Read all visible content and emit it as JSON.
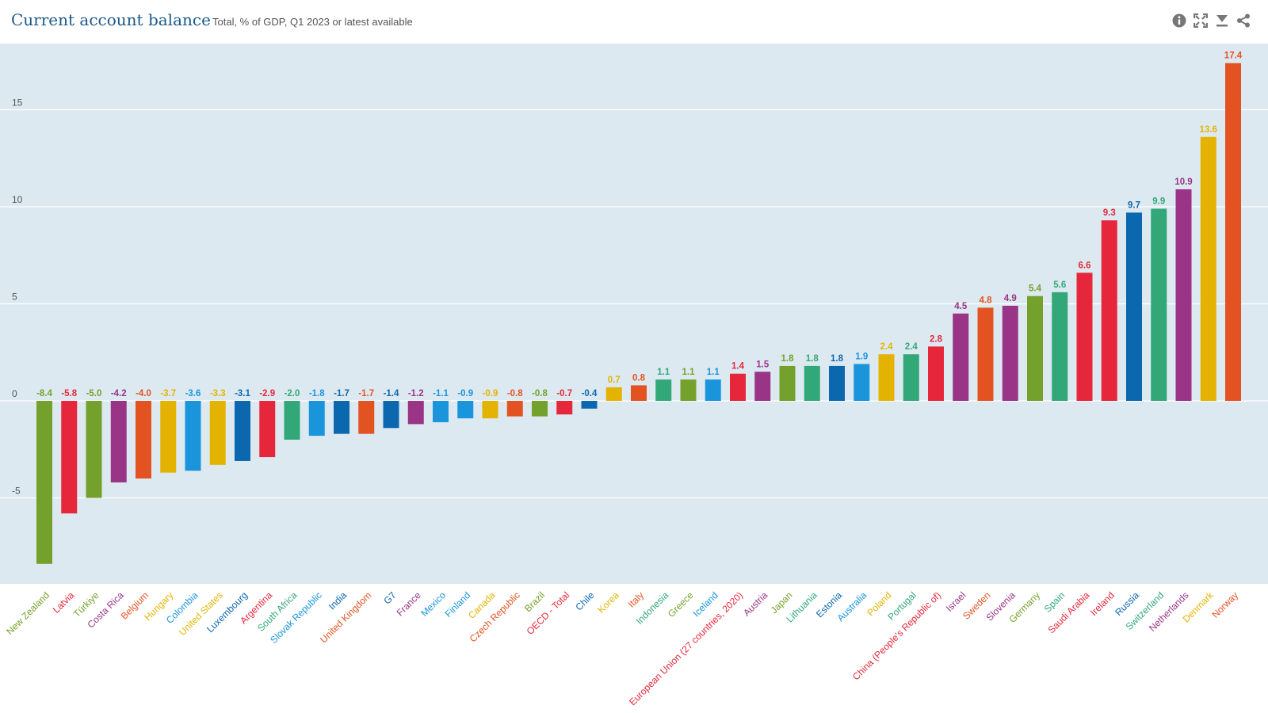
{
  "header": {
    "title": "Current account balance",
    "subtitle": "Total, % of GDP, Q1 2023 or latest available"
  },
  "toolbar": {
    "icons": [
      "info-icon",
      "fullscreen-icon",
      "download-icon",
      "share-icon"
    ],
    "icon_color": "#777777"
  },
  "colors": {
    "plot_background": "#dde9f1",
    "gridline": "#ffffff",
    "axis_text": "#555555",
    "title": "#1a5a8a",
    "series_palette": [
      "#74a12b",
      "#e6273b",
      "#74a12b",
      "#993486",
      "#e35322",
      "#e4b302",
      "#1a95dc",
      "#e4b302",
      "#0b67ae",
      "#e6273b",
      "#32a878",
      "#1a95dc",
      "#0b67ae",
      "#e35322",
      "#0b67ae",
      "#993486",
      "#1a95dc",
      "#1a95dc",
      "#e4b302",
      "#e35322",
      "#74a12b",
      "#e6273b",
      "#0b67ae",
      "#e4b302",
      "#e35322",
      "#32a878",
      "#74a12b",
      "#1a95dc",
      "#e6273b",
      "#993486",
      "#74a12b",
      "#32a878",
      "#0b67ae",
      "#1a95dc",
      "#e4b302",
      "#32a878",
      "#e6273b",
      "#993486",
      "#e35322",
      "#993486",
      "#74a12b",
      "#32a878",
      "#e6273b",
      "#e6273b",
      "#0b67ae",
      "#32a878",
      "#993486",
      "#e4b302",
      "#e35322"
    ]
  },
  "chart_data": {
    "type": "bar",
    "title": "Current account balance",
    "subtitle": "Total, % of GDP, Q1 2023 or latest available",
    "categories": [
      "New Zealand",
      "Latvia",
      "Türkiye",
      "Costa Rica",
      "Belgium",
      "Hungary",
      "Colombia",
      "United States",
      "Luxembourg",
      "Argentina",
      "South Africa",
      "Slovak Republic",
      "India",
      "United Kingdom",
      "G7",
      "France",
      "Mexico",
      "Finland",
      "Canada",
      "Czech Republic",
      "Brazil",
      "OECD - Total",
      "Chile",
      "Korea",
      "Italy",
      "Indonesia",
      "Greece",
      "Iceland",
      "European Union (27 countries, 2020)",
      "Austria",
      "Japan",
      "Lithuania",
      "Estonia",
      "Australia",
      "Poland",
      "Portugal",
      "China (People's Republic of)",
      "Israel",
      "Sweden",
      "Slovenia",
      "Germany",
      "Spain",
      "Saudi Arabia",
      "Ireland",
      "Russia",
      "Switzerland",
      "Netherlands",
      "Denmark",
      "Norway"
    ],
    "values": [
      -8.4,
      -5.8,
      -5.0,
      -4.2,
      -4.0,
      -3.7,
      -3.6,
      -3.3,
      -3.1,
      -2.9,
      -2.0,
      -1.8,
      -1.7,
      -1.7,
      -1.4,
      -1.2,
      -1.1,
      -0.9,
      -0.9,
      -0.8,
      -0.8,
      -0.7,
      -0.4,
      0.7,
      0.8,
      1.1,
      1.1,
      1.1,
      1.4,
      1.5,
      1.8,
      1.8,
      1.8,
      1.9,
      2.4,
      2.4,
      2.8,
      4.5,
      4.8,
      4.9,
      5.4,
      5.6,
      6.6,
      9.3,
      9.7,
      9.9,
      10.9,
      13.6,
      17.4
    ],
    "value_labels": [
      "-8.4",
      "-5.8",
      "-5.0",
      "-4.2",
      "-4.0",
      "-3.7",
      "-3.6",
      "-3.3",
      "-3.1",
      "-2.9",
      "-2.0",
      "-1.8",
      "-1.7",
      "-1.7",
      "-1.4",
      "-1.2",
      "-1.1",
      "-0.9",
      "-0.9",
      "-0.8",
      "-0.8",
      "-0.7",
      "-0.4",
      "0.7",
      "0.8",
      "1.1",
      "1.1",
      "1.1",
      "1.4",
      "1.5",
      "1.8",
      "1.8",
      "1.8",
      "1.9",
      "2.4",
      "2.4",
      "2.8",
      "4.5",
      "4.8",
      "4.9",
      "5.4",
      "5.6",
      "6.6",
      "9.3",
      "9.7",
      "9.9",
      "10.9",
      "13.6",
      "17.4"
    ],
    "y_ticks": [
      -5,
      0,
      5,
      10,
      15
    ],
    "y_tick_labels": [
      "-5",
      "0",
      "5",
      "10",
      "15"
    ],
    "ylim": [
      -9.5,
      18
    ],
    "xlabel": "",
    "ylabel": "",
    "grid": true,
    "legend": "none"
  }
}
